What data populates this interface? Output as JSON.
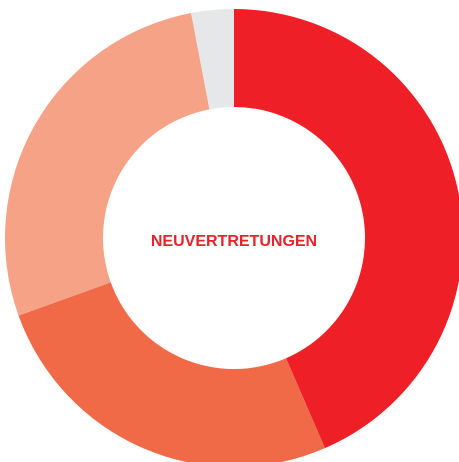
{
  "chart_data": {
    "type": "donut",
    "title": "NEUVERTRETUNGEN",
    "categories": [
      null,
      null,
      null,
      null
    ],
    "values": [
      43.5,
      26,
      27.5,
      3
    ],
    "colors": [
      "#ee1f26",
      "#f06a48",
      "#f5a286",
      "#e6e7e8"
    ],
    "title_color": "#e8212b"
  }
}
